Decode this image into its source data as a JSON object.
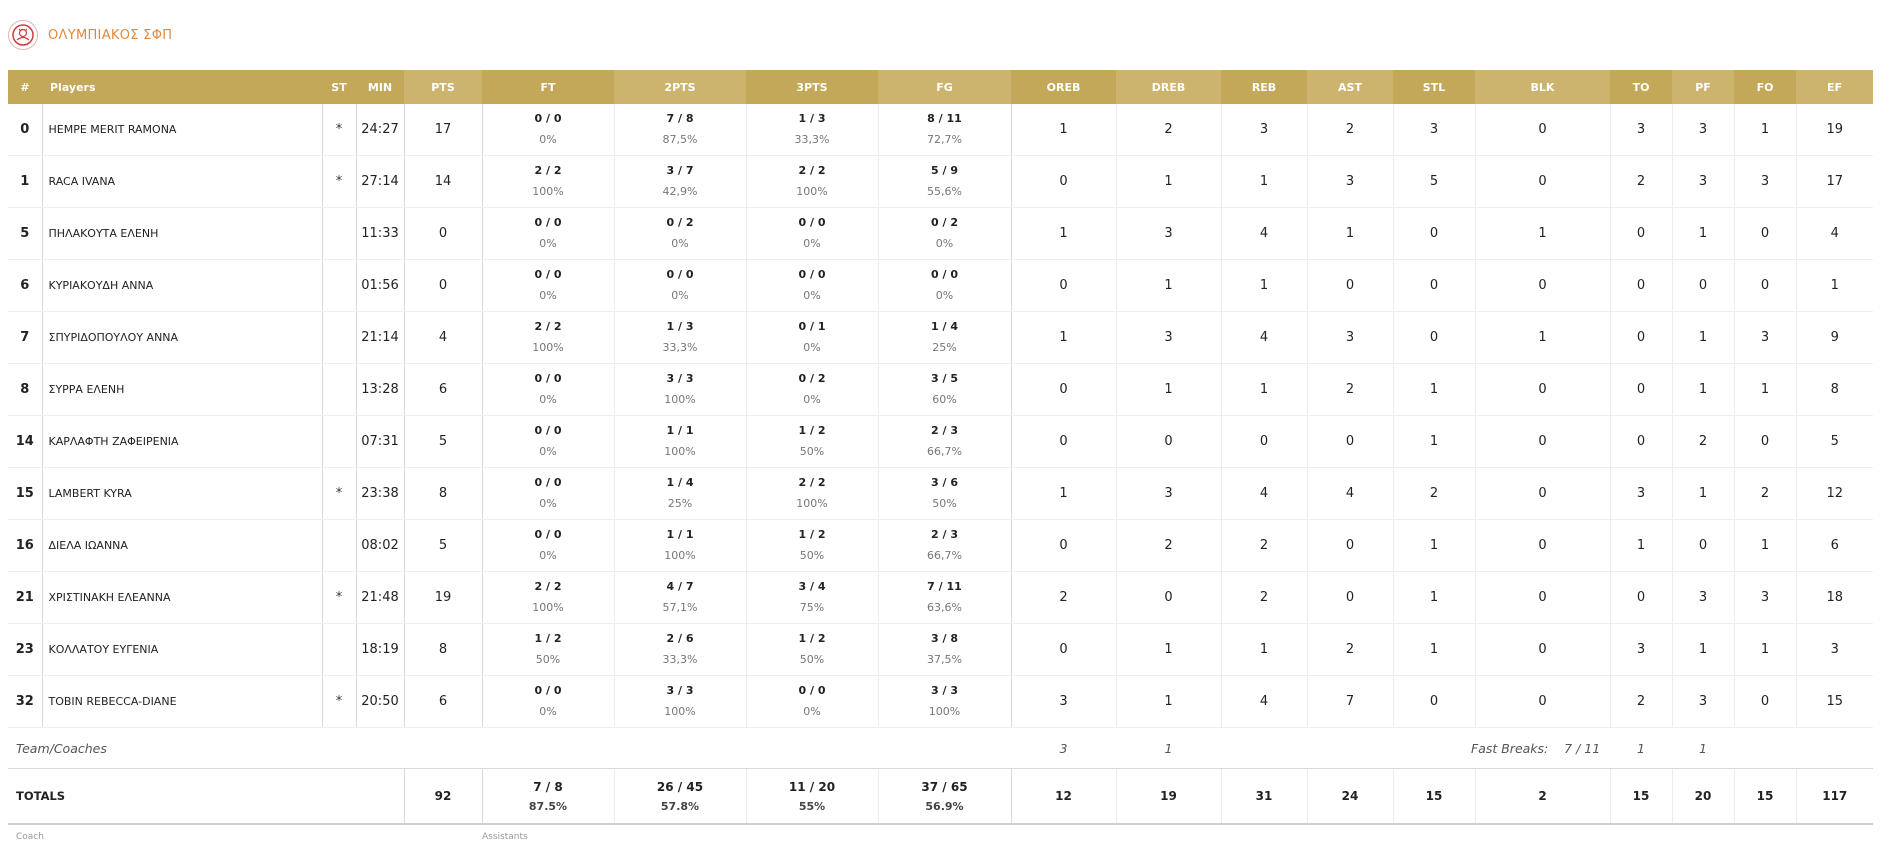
{
  "team": {
    "name": "ΟΛΥΜΠΙΑΚΟΣ ΣΦΠ",
    "logo_icon": "olympiacos-crest-icon"
  },
  "colors": {
    "header_bg": "#c3a85a",
    "header_alt_bg": "#ccb46e",
    "team_name": "#e08a3a"
  },
  "columns": {
    "num": "#",
    "players": "Players",
    "st": "ST",
    "min": "MIN",
    "pts": "PTS",
    "ft": "FT",
    "two": "2PTS",
    "three": "3PTS",
    "fg": "FG",
    "oreb": "OREB",
    "dreb": "DREB",
    "reb": "REB",
    "ast": "AST",
    "stl": "STL",
    "blk": "BLK",
    "to": "TO",
    "pf": "PF",
    "fo": "FO",
    "ef": "EF"
  },
  "players": [
    {
      "num": "0",
      "name": "HEMPE MERIT RAMONA",
      "st": "*",
      "min": "24:27",
      "pts": "17",
      "ft": "0 / 0",
      "ft_pct": "0%",
      "two": "7 / 8",
      "two_pct": "87,5%",
      "three": "1 / 3",
      "three_pct": "33,3%",
      "fg": "8 / 11",
      "fg_pct": "72,7%",
      "oreb": "1",
      "dreb": "2",
      "reb": "3",
      "ast": "2",
      "stl": "3",
      "blk": "0",
      "to": "3",
      "pf": "3",
      "fo": "1",
      "ef": "19"
    },
    {
      "num": "1",
      "name": "RACA IVANA",
      "st": "*",
      "min": "27:14",
      "pts": "14",
      "ft": "2 / 2",
      "ft_pct": "100%",
      "two": "3 / 7",
      "two_pct": "42,9%",
      "three": "2 / 2",
      "three_pct": "100%",
      "fg": "5 / 9",
      "fg_pct": "55,6%",
      "oreb": "0",
      "dreb": "1",
      "reb": "1",
      "ast": "3",
      "stl": "5",
      "blk": "0",
      "to": "2",
      "pf": "3",
      "fo": "3",
      "ef": "17"
    },
    {
      "num": "5",
      "name": "ΠΗΛΑΚΟΥΤΑ ΕΛΕΝΗ",
      "st": "",
      "min": "11:33",
      "pts": "0",
      "ft": "0 / 0",
      "ft_pct": "0%",
      "two": "0 / 2",
      "two_pct": "0%",
      "three": "0 / 0",
      "three_pct": "0%",
      "fg": "0 / 2",
      "fg_pct": "0%",
      "oreb": "1",
      "dreb": "3",
      "reb": "4",
      "ast": "1",
      "stl": "0",
      "blk": "1",
      "to": "0",
      "pf": "1",
      "fo": "0",
      "ef": "4"
    },
    {
      "num": "6",
      "name": "ΚΥΡΙΑΚΟΥΔΗ ΑΝΝΑ",
      "st": "",
      "min": "01:56",
      "pts": "0",
      "ft": "0 / 0",
      "ft_pct": "0%",
      "two": "0 / 0",
      "two_pct": "0%",
      "three": "0 / 0",
      "three_pct": "0%",
      "fg": "0 / 0",
      "fg_pct": "0%",
      "oreb": "0",
      "dreb": "1",
      "reb": "1",
      "ast": "0",
      "stl": "0",
      "blk": "0",
      "to": "0",
      "pf": "0",
      "fo": "0",
      "ef": "1"
    },
    {
      "num": "7",
      "name": "ΣΠΥΡΙΔΟΠΟΥΛΟΥ ΑΝΝΑ",
      "st": "",
      "min": "21:14",
      "pts": "4",
      "ft": "2 / 2",
      "ft_pct": "100%",
      "two": "1 / 3",
      "two_pct": "33,3%",
      "three": "0 / 1",
      "three_pct": "0%",
      "fg": "1 / 4",
      "fg_pct": "25%",
      "oreb": "1",
      "dreb": "3",
      "reb": "4",
      "ast": "3",
      "stl": "0",
      "blk": "1",
      "to": "0",
      "pf": "1",
      "fo": "3",
      "ef": "9"
    },
    {
      "num": "8",
      "name": "ΣΥΡΡΑ ΕΛΕΝΗ",
      "st": "",
      "min": "13:28",
      "pts": "6",
      "ft": "0 / 0",
      "ft_pct": "0%",
      "two": "3 / 3",
      "two_pct": "100%",
      "three": "0 / 2",
      "three_pct": "0%",
      "fg": "3 / 5",
      "fg_pct": "60%",
      "oreb": "0",
      "dreb": "1",
      "reb": "1",
      "ast": "2",
      "stl": "1",
      "blk": "0",
      "to": "0",
      "pf": "1",
      "fo": "1",
      "ef": "8"
    },
    {
      "num": "14",
      "name": "ΚΑΡΛΑΦΤΗ ΖΑΦΕΙΡΕΝΙΑ",
      "st": "",
      "min": "07:31",
      "pts": "5",
      "ft": "0 / 0",
      "ft_pct": "0%",
      "two": "1 / 1",
      "two_pct": "100%",
      "three": "1 / 2",
      "three_pct": "50%",
      "fg": "2 / 3",
      "fg_pct": "66,7%",
      "oreb": "0",
      "dreb": "0",
      "reb": "0",
      "ast": "0",
      "stl": "1",
      "blk": "0",
      "to": "0",
      "pf": "2",
      "fo": "0",
      "ef": "5"
    },
    {
      "num": "15",
      "name": "LAMBERT KYRA",
      "st": "*",
      "min": "23:38",
      "pts": "8",
      "ft": "0 / 0",
      "ft_pct": "0%",
      "two": "1 / 4",
      "two_pct": "25%",
      "three": "2 / 2",
      "three_pct": "100%",
      "fg": "3 / 6",
      "fg_pct": "50%",
      "oreb": "1",
      "dreb": "3",
      "reb": "4",
      "ast": "4",
      "stl": "2",
      "blk": "0",
      "to": "3",
      "pf": "1",
      "fo": "2",
      "ef": "12"
    },
    {
      "num": "16",
      "name": "ΔΙΕΛΑ ΙΩΑΝΝΑ",
      "st": "",
      "min": "08:02",
      "pts": "5",
      "ft": "0 / 0",
      "ft_pct": "0%",
      "two": "1 / 1",
      "two_pct": "100%",
      "three": "1 / 2",
      "three_pct": "50%",
      "fg": "2 / 3",
      "fg_pct": "66,7%",
      "oreb": "0",
      "dreb": "2",
      "reb": "2",
      "ast": "0",
      "stl": "1",
      "blk": "0",
      "to": "1",
      "pf": "0",
      "fo": "1",
      "ef": "6"
    },
    {
      "num": "21",
      "name": "ΧΡΙΣΤΙΝΑΚΗ ΕΛΕΑΝΝΑ",
      "st": "*",
      "min": "21:48",
      "pts": "19",
      "ft": "2 / 2",
      "ft_pct": "100%",
      "two": "4 / 7",
      "two_pct": "57,1%",
      "three": "3 / 4",
      "three_pct": "75%",
      "fg": "7 / 11",
      "fg_pct": "63,6%",
      "oreb": "2",
      "dreb": "0",
      "reb": "2",
      "ast": "0",
      "stl": "1",
      "blk": "0",
      "to": "0",
      "pf": "3",
      "fo": "3",
      "ef": "18"
    },
    {
      "num": "23",
      "name": "ΚΟΛΛΑΤΟΥ ΕΥΓΕΝΙΑ",
      "st": "",
      "min": "18:19",
      "pts": "8",
      "ft": "1 / 2",
      "ft_pct": "50%",
      "two": "2 / 6",
      "two_pct": "33,3%",
      "three": "1 / 2",
      "three_pct": "50%",
      "fg": "3 / 8",
      "fg_pct": "37,5%",
      "oreb": "0",
      "dreb": "1",
      "reb": "1",
      "ast": "2",
      "stl": "1",
      "blk": "0",
      "to": "3",
      "pf": "1",
      "fo": "1",
      "ef": "3"
    },
    {
      "num": "32",
      "name": "TOBIN REBECCA-DIANE",
      "st": "*",
      "min": "20:50",
      "pts": "6",
      "ft": "0 / 0",
      "ft_pct": "0%",
      "two": "3 / 3",
      "two_pct": "100%",
      "three": "0 / 0",
      "three_pct": "0%",
      "fg": "3 / 3",
      "fg_pct": "100%",
      "oreb": "3",
      "dreb": "1",
      "reb": "4",
      "ast": "7",
      "stl": "0",
      "blk": "0",
      "to": "2",
      "pf": "3",
      "fo": "0",
      "ef": "15"
    }
  ],
  "team_row": {
    "label": "Team/Coaches",
    "oreb": "3",
    "dreb": "1",
    "fast_breaks_label": "Fast Breaks:",
    "fast_breaks_value": "7 / 11",
    "to": "1",
    "pf": "1"
  },
  "totals": {
    "label": "TOTALS",
    "pts": "92",
    "ft": "7 / 8",
    "ft_pct": "87.5%",
    "two": "26 / 45",
    "two_pct": "57.8%",
    "three": "11 / 20",
    "three_pct": "55%",
    "fg": "37 / 65",
    "fg_pct": "56.9%",
    "oreb": "12",
    "dreb": "19",
    "reb": "31",
    "ast": "24",
    "stl": "15",
    "blk": "2",
    "to": "15",
    "pf": "20",
    "fo": "15",
    "ef": "117"
  },
  "footer": {
    "coach_label": "Coach",
    "assistants_label": "Assistants"
  }
}
